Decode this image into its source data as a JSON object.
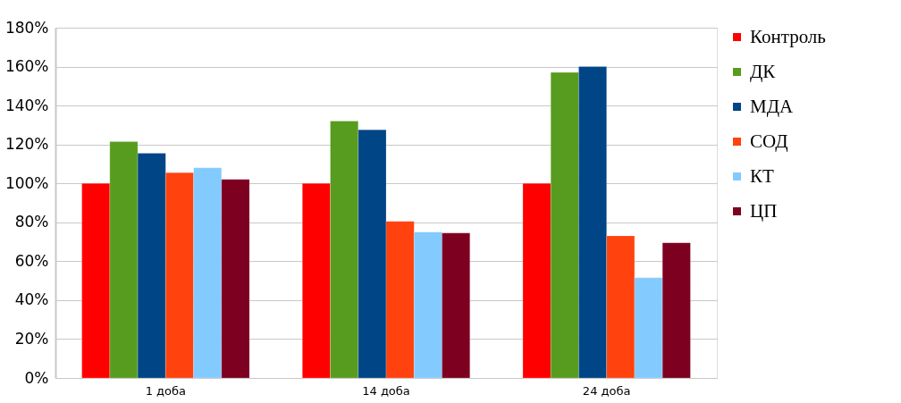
{
  "chart_data": {
    "type": "bar",
    "categories": [
      "1 доба",
      "14 доба",
      "24 доба"
    ],
    "series": [
      {
        "name": "Контроль",
        "color": "#ff0000",
        "values": [
          100,
          100,
          100
        ]
      },
      {
        "name": "ДК",
        "color": "#589c1f",
        "values": [
          121.5,
          132,
          157
        ]
      },
      {
        "name": "МДА",
        "color": "#004586",
        "values": [
          115.5,
          127.5,
          160
        ]
      },
      {
        "name": "СОД",
        "color": "#ff420e",
        "values": [
          105.5,
          80.5,
          73
        ]
      },
      {
        "name": "КТ",
        "color": "#83caff",
        "values": [
          108,
          75,
          51.5
        ]
      },
      {
        "name": "ЦП",
        "color": "#7e0021",
        "values": [
          102,
          74.5,
          69.5
        ]
      }
    ],
    "ylim": [
      0,
      180
    ],
    "yticks": [
      {
        "value": 0,
        "label": "0%"
      },
      {
        "value": 20,
        "label": "20%"
      },
      {
        "value": 40,
        "label": "40%"
      },
      {
        "value": 60,
        "label": "60%"
      },
      {
        "value": 80,
        "label": "80%"
      },
      {
        "value": 100,
        "label": "100%"
      },
      {
        "value": 120,
        "label": "120%"
      },
      {
        "value": 140,
        "label": "140%"
      },
      {
        "value": 160,
        "label": "160%"
      },
      {
        "value": 180,
        "label": "180%"
      }
    ],
    "grid": "y",
    "legend": "right"
  }
}
